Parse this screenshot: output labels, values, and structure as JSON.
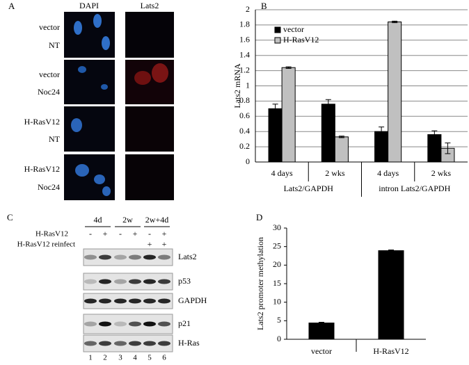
{
  "panel_a": {
    "label": "A",
    "columns": [
      "DAPI",
      "Lats2"
    ],
    "rows": [
      [
        "vector",
        "NT"
      ],
      [
        "vector",
        "Noc24"
      ],
      [
        "H-RasV12",
        "NT"
      ],
      [
        "H-RasV12",
        "Noc24"
      ]
    ]
  },
  "panel_c": {
    "label": "C",
    "groups": [
      "4d",
      "2w",
      "2w+4d"
    ],
    "row_labels": [
      "H-RasV12",
      "H-RasV12 reinfect"
    ],
    "signs": [
      [
        "-",
        "+",
        "-",
        "+",
        "-",
        "+"
      ],
      [
        "+",
        "+"
      ]
    ],
    "bands": [
      "Lats2",
      "p53",
      "GAPDH",
      "p21",
      "H-Ras"
    ],
    "lanes": [
      "1",
      "2",
      "3",
      "4",
      "5",
      "6"
    ]
  },
  "chart_data": [
    {
      "type": "bar",
      "label": "B",
      "y_label": "Lats2  mRNA",
      "categories": [
        "4 days",
        "2 wks",
        "4 days",
        "2 wks"
      ],
      "groups": [
        "Lats2/GAPDH",
        "intron Lats2/GAPDH"
      ],
      "series": [
        {
          "name": "vector",
          "color": "#000000",
          "values": [
            0.7,
            0.76,
            0.4,
            0.36
          ],
          "errors": [
            0.06,
            0.06,
            0.06,
            0.05
          ]
        },
        {
          "name": "H-RasV12",
          "color": "#c0c0c0",
          "values": [
            1.24,
            0.33,
            1.84,
            0.18
          ],
          "errors": [
            0.01,
            0.01,
            0.01,
            0.07
          ]
        }
      ],
      "ylim": [
        0,
        2
      ],
      "yticks": [
        0,
        0.2,
        0.4,
        0.6,
        0.8,
        1,
        1.2,
        1.4,
        1.6,
        1.8,
        2
      ],
      "grid": true,
      "legend": "upper-left"
    },
    {
      "type": "bar",
      "label": "D",
      "y_label": "Lats2 promoter methylation",
      "categories": [
        "vector",
        "H-RasV12"
      ],
      "series": [
        {
          "color": "#000000",
          "values": [
            4.4,
            23.9
          ],
          "errors": [
            0.2,
            0.2
          ]
        }
      ],
      "ylim": [
        0,
        30
      ],
      "yticks": [
        0,
        5,
        10,
        15,
        20,
        25,
        30
      ],
      "grid": false
    }
  ]
}
